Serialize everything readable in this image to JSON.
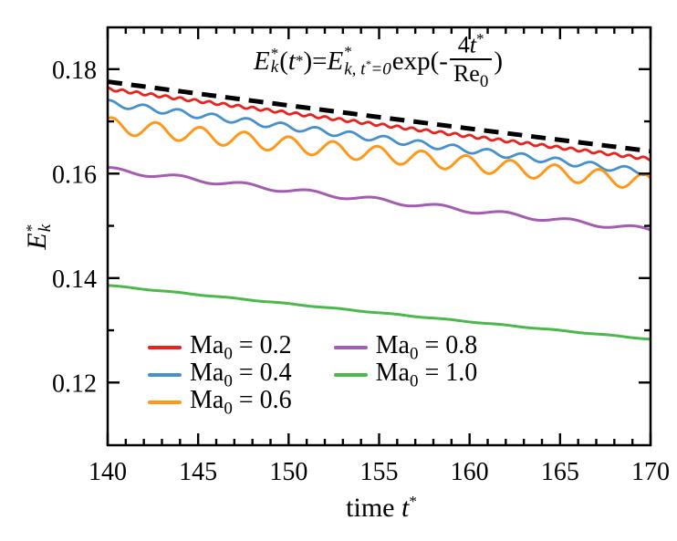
{
  "figure": {
    "background_color": "#ffffff",
    "frame_color": "#000000"
  },
  "equation": {
    "lhs_base": "E",
    "lhs_sup": "*",
    "lhs_sub": "k",
    "open_paren": "(",
    "arg_var": "t",
    "arg_sup": "*",
    "close_paren": ")",
    "equals": " = ",
    "rhs_base": "E",
    "rhs_sup": "*",
    "rhs_sub_main": "k, t",
    "rhs_sub_sup": "*",
    "rhs_sub_tail": "=0",
    "exp_text": "exp(",
    "minus": " - ",
    "frac_num_coeff": "4",
    "frac_num_var": "t",
    "frac_num_sup": "*",
    "frac_den_base": "Re",
    "frac_den_sub": "0",
    "closing_paren": ")"
  },
  "x_axis": {
    "label_text": "time ",
    "label_var": "t",
    "label_sup": "*",
    "tick_labels": [
      "140",
      "145",
      "150",
      "155",
      "160",
      "165",
      "170"
    ]
  },
  "y_axis": {
    "label_var": "E",
    "label_sup": "*",
    "label_sub": "k",
    "tick_labels": [
      "0.18",
      "0.16",
      "0.14",
      "0.12"
    ]
  },
  "legend": {
    "prefix": "Ma",
    "prefix_sub": "0",
    "equals": " = ",
    "columns": [
      [
        {
          "value": "0.2",
          "color": "#e8221c"
        },
        {
          "value": "0.4",
          "color": "#4690cd"
        },
        {
          "value": "0.6",
          "color": "#ff9818"
        }
      ],
      [
        {
          "value": "0.8",
          "color": "#a45cb2"
        },
        {
          "value": "1.0",
          "color": "#4cb84c"
        }
      ]
    ]
  },
  "chart_data": {
    "type": "line",
    "title": "",
    "xlabel": "time t*",
    "ylabel": "E_k*",
    "xlim": [
      140,
      170
    ],
    "ylim": [
      0.108,
      0.188
    ],
    "x_major_ticks": [
      140,
      145,
      150,
      155,
      160,
      165,
      170
    ],
    "x_minor_tick_step": 1,
    "y_major_ticks": [
      0.18,
      0.16,
      0.14,
      0.12
    ],
    "y_minor_ticks": [
      0.17,
      0.15,
      0.13
    ],
    "grid": false,
    "legend_position": "lower left, two columns",
    "annotation": "E_k*(t*) = E_{k,t*=0}* exp(-4t*/Re_0)",
    "series_model": "y(t) = y_start*exp(-k*(t-140)) + osc_amplitude*sin(2*pi*(t-140)/osc_period + phase), k = ln(y_start/y_end)/30",
    "series": [
      {
        "name": "Ma0 = 0.2",
        "color": "#e8221c",
        "style": "solid",
        "width": 2.8,
        "y_start": 0.1762,
        "y_end": 0.1628,
        "osc_amplitude": 0.00025,
        "osc_period": 0.8,
        "phase": 1.4
      },
      {
        "name": "Ma0 = 0.4",
        "color": "#4690cd",
        "style": "solid",
        "width": 2.8,
        "y_start": 0.1735,
        "y_end": 0.1602,
        "osc_amplitude": 0.0006,
        "osc_period": 1.9,
        "phase": 1.2
      },
      {
        "name": "Ma0 = 0.6",
        "color": "#ff9818",
        "style": "solid",
        "width": 3.0,
        "y_start": 0.1693,
        "y_end": 0.1583,
        "osc_amplitude": 0.0015,
        "osc_period": 2.45,
        "phase": 1.0
      },
      {
        "name": "Ma0 = 0.8",
        "color": "#a45cb2",
        "style": "solid",
        "width": 3.0,
        "y_start": 0.1608,
        "y_end": 0.1492,
        "osc_amplitude": 0.00045,
        "osc_period": 3.6,
        "phase": 1.0
      },
      {
        "name": "Ma0 = 1.0",
        "color": "#4cb84c",
        "style": "solid",
        "width": 3.0,
        "y_start": 0.1386,
        "y_end": 0.1283,
        "osc_amplitude": 6e-05,
        "osc_period": 3.0,
        "phase": 0.0
      },
      {
        "name": "analytic exp(-4t*/Re0)",
        "color": "#000000",
        "style": "dashed",
        "width": 5.0,
        "y_start": 0.1776,
        "y_end": 0.1643,
        "osc_amplitude": 0,
        "osc_period": 0,
        "phase": 0
      }
    ]
  }
}
